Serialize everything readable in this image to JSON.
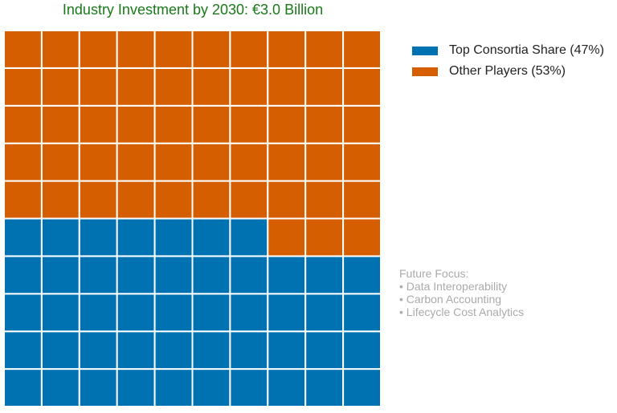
{
  "chart_data": {
    "type": "waffle",
    "subtitle": "Industry Investment by 2030: €3.0 Billion",
    "grid": {
      "rows": 10,
      "cols": 10
    },
    "series": [
      {
        "name": "Top Consortia Share (47%)",
        "value": 47,
        "color": "#0072B2"
      },
      {
        "name": "Other Players (53%)",
        "value": 53,
        "color": "#D55E00"
      }
    ],
    "legend_position": "top-right"
  },
  "note": {
    "title": "Future Focus:",
    "items": [
      "• Data Interoperability",
      "• Carbon Accounting",
      "• Lifecycle Cost Analytics"
    ]
  }
}
